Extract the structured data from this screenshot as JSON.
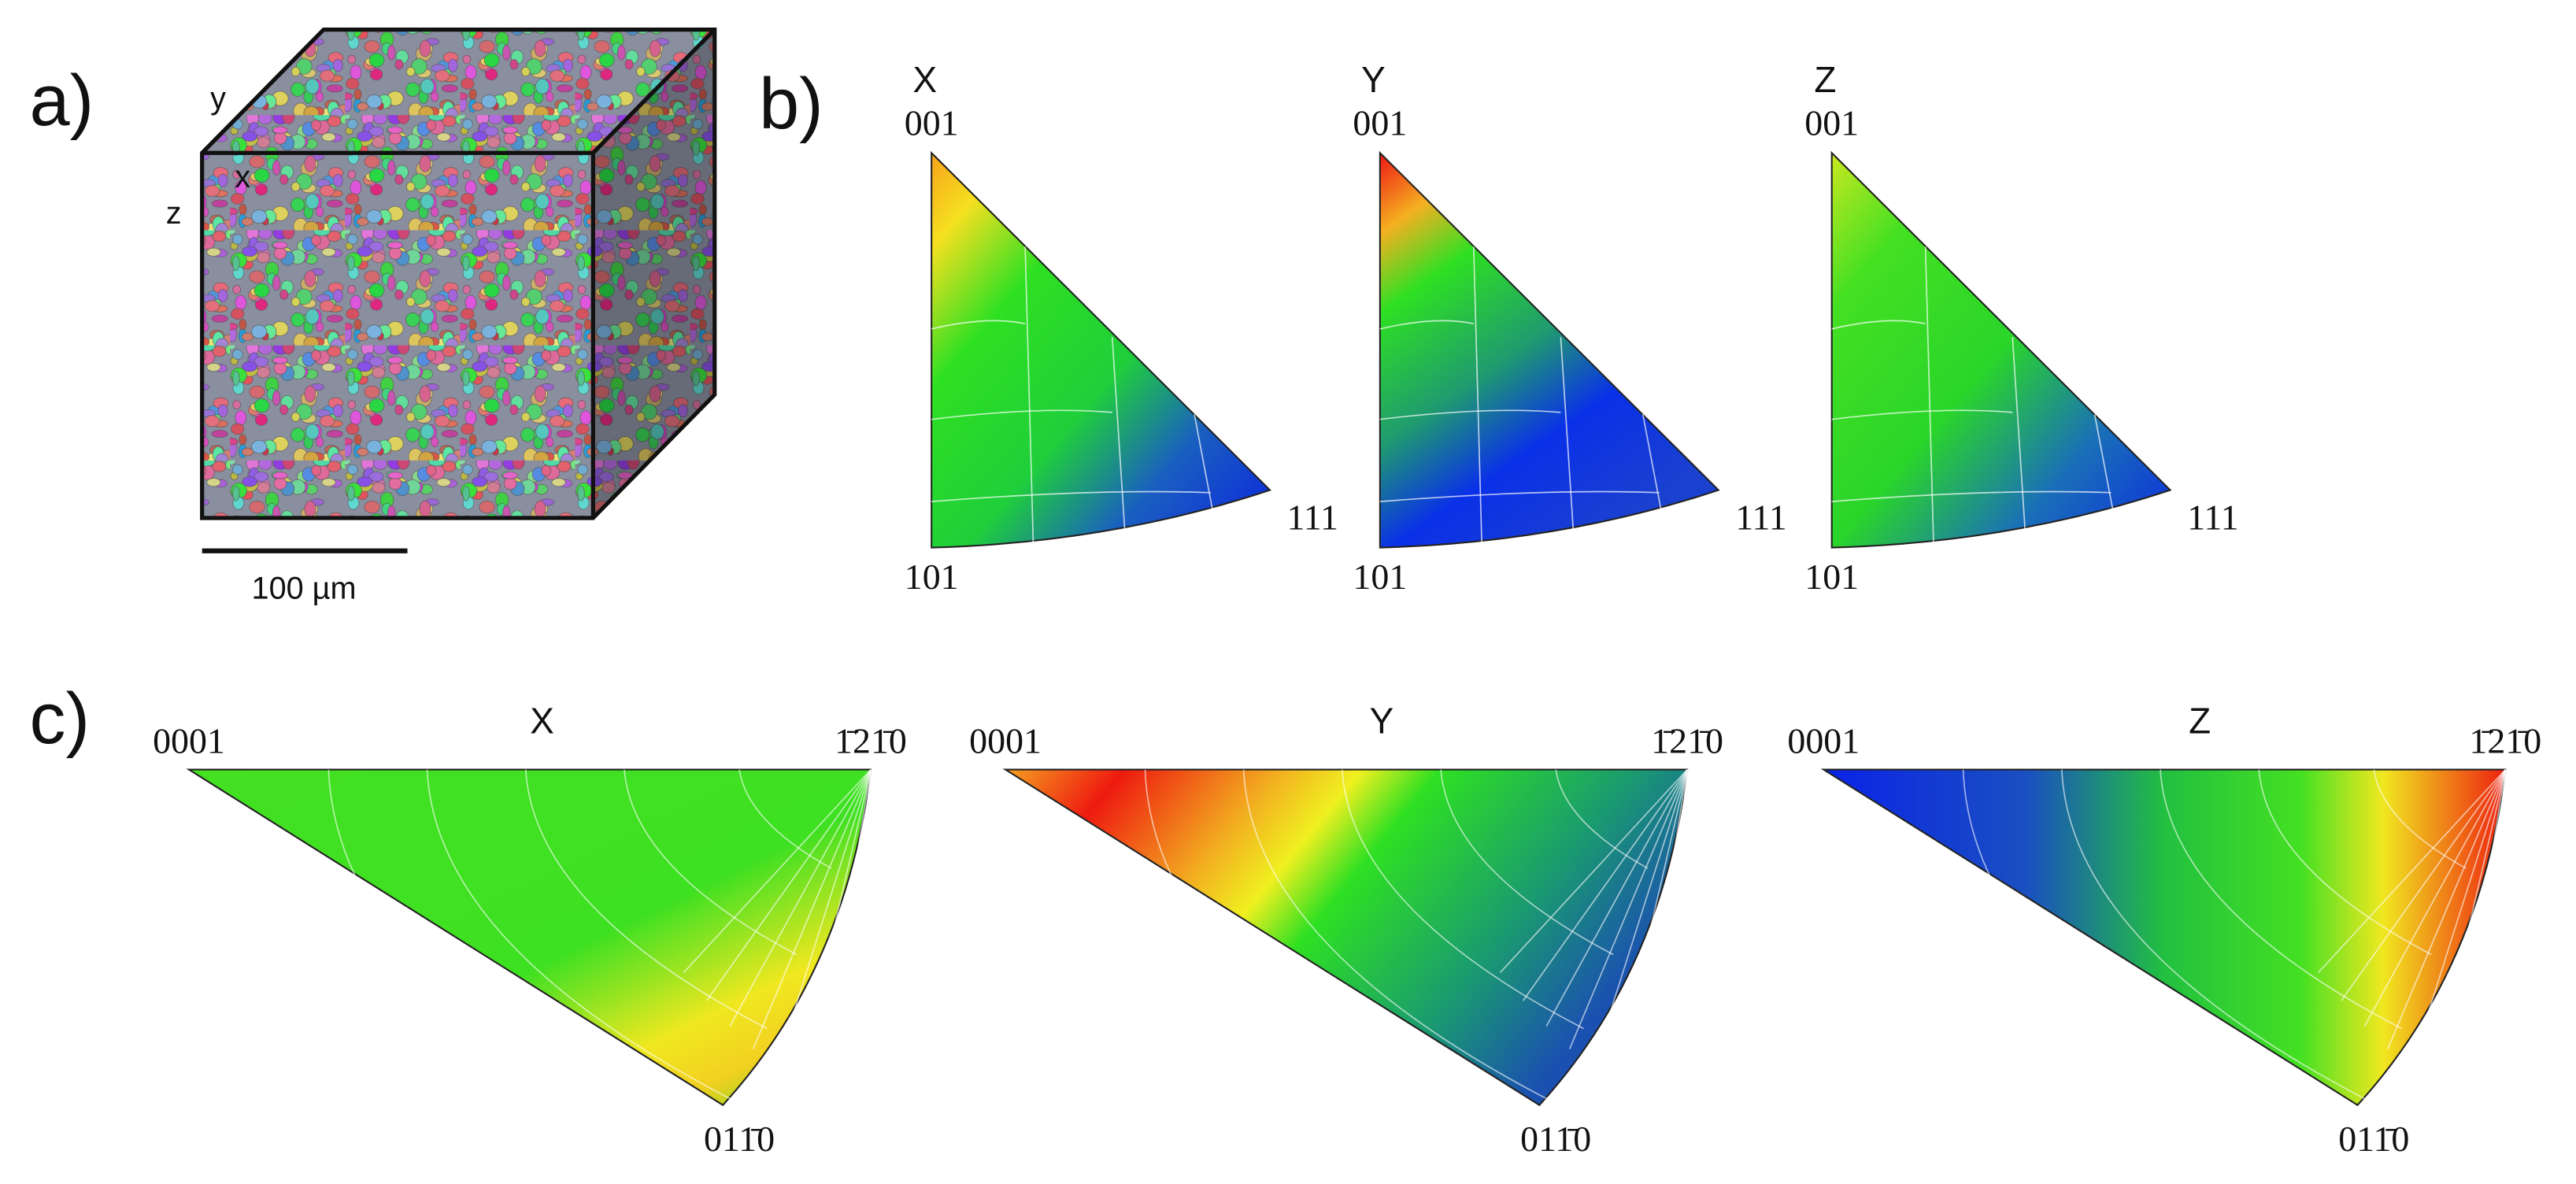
{
  "panels": [
    {
      "label": "a)",
      "axes": [
        "y",
        "x",
        "z"
      ],
      "scale_bar": "100 µm"
    },
    {
      "label": "b)",
      "figures": [
        {
          "title": "X",
          "corners": [
            "001",
            "101",
            "111"
          ]
        },
        {
          "title": "Y",
          "corners": [
            "001",
            "101",
            "111"
          ]
        },
        {
          "title": "Z",
          "corners": [
            "001",
            "101",
            "111"
          ]
        }
      ]
    },
    {
      "label": "c)",
      "figures": [
        {
          "title": "X",
          "corners": [
            "0001",
            "1̄21̄0",
            "011̄0"
          ]
        },
        {
          "title": "Y",
          "corners": [
            "0001",
            "1̄21̄0",
            "011̄0"
          ]
        },
        {
          "title": "Z",
          "corners": [
            "0001",
            "1̄21̄0",
            "011̄0"
          ]
        }
      ]
    }
  ]
}
